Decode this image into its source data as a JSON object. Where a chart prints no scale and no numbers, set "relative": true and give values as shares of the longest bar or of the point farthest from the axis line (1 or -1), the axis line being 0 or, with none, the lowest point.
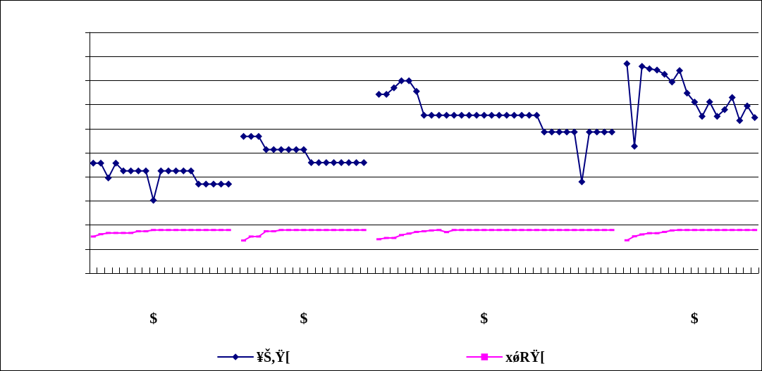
{
  "chart_data": {
    "type": "line",
    "relative": true,
    "grid": "y",
    "legend": "bottom",
    "line_style": "solid",
    "categories": [
      null,
      null,
      null,
      null,
      null,
      null,
      null,
      null,
      "$",
      null,
      null,
      null,
      null,
      null,
      null,
      null,
      null,
      null,
      null,
      null,
      null,
      null,
      null,
      null,
      null,
      null,
      null,
      null,
      "$",
      null,
      null,
      null,
      null,
      null,
      null,
      null,
      null,
      null,
      null,
      null,
      null,
      null,
      null,
      null,
      null,
      null,
      null,
      null,
      null,
      null,
      null,
      null,
      "$",
      null,
      null,
      null,
      null,
      null,
      null,
      null,
      null,
      null,
      null,
      null,
      null,
      null,
      null,
      null,
      null,
      null,
      null,
      null,
      null,
      null,
      null,
      null,
      null,
      null,
      null,
      null,
      "$",
      null,
      null,
      null,
      null,
      null,
      null,
      null,
      null
    ],
    "series": [
      {
        "name": "¥Š,Ÿ[",
        "color": "#000080",
        "marker": "diamond",
        "values": [
          0.525,
          0.525,
          0.455,
          0.525,
          0.488,
          0.488,
          0.488,
          0.488,
          0.348,
          0.488,
          0.488,
          0.488,
          0.488,
          0.488,
          0.425,
          0.425,
          0.425,
          0.425,
          0.425,
          null,
          0.653,
          0.653,
          0.653,
          0.59,
          0.59,
          0.59,
          0.59,
          0.59,
          0.59,
          0.528,
          0.528,
          0.528,
          0.528,
          0.528,
          0.528,
          0.528,
          0.528,
          null,
          0.854,
          0.854,
          0.885,
          0.919,
          0.919,
          0.868,
          0.754,
          0.754,
          0.754,
          0.754,
          0.754,
          0.754,
          0.754,
          0.754,
          0.754,
          0.754,
          0.754,
          0.754,
          0.754,
          0.754,
          0.754,
          0.754,
          0.674,
          0.674,
          0.674,
          0.674,
          0.674,
          0.436,
          0.674,
          0.674,
          0.674,
          0.674,
          null,
          1.0,
          0.606,
          0.988,
          0.976,
          0.97,
          0.95,
          0.913,
          0.968,
          0.86,
          0.817,
          0.749,
          0.818,
          0.749,
          0.781,
          0.839,
          0.729,
          0.799,
          0.743
        ]
      },
      {
        "name": "xǿRŸ[",
        "color": "#ff00ff",
        "marker": "square",
        "values": [
          0.175,
          0.186,
          0.192,
          0.192,
          0.192,
          0.192,
          0.2,
          0.2,
          0.206,
          0.206,
          0.206,
          0.206,
          0.206,
          0.206,
          0.206,
          0.206,
          0.206,
          0.206,
          0.206,
          null,
          0.156,
          0.175,
          0.175,
          0.2,
          0.2,
          0.206,
          0.206,
          0.206,
          0.206,
          0.206,
          0.206,
          0.206,
          0.206,
          0.206,
          0.206,
          0.206,
          0.206,
          null,
          0.162,
          0.168,
          0.168,
          0.182,
          0.189,
          0.197,
          0.2,
          0.204,
          0.206,
          0.196,
          0.206,
          0.206,
          0.206,
          0.206,
          0.206,
          0.206,
          0.206,
          0.206,
          0.206,
          0.206,
          0.206,
          0.206,
          0.206,
          0.206,
          0.206,
          0.206,
          0.206,
          0.206,
          0.206,
          0.206,
          0.206,
          0.206,
          null,
          0.157,
          0.176,
          0.185,
          0.191,
          0.191,
          0.197,
          0.204,
          0.206,
          0.206,
          0.206,
          0.206,
          0.206,
          0.206,
          0.206,
          0.206,
          0.206,
          0.206,
          0.206
        ]
      }
    ]
  }
}
